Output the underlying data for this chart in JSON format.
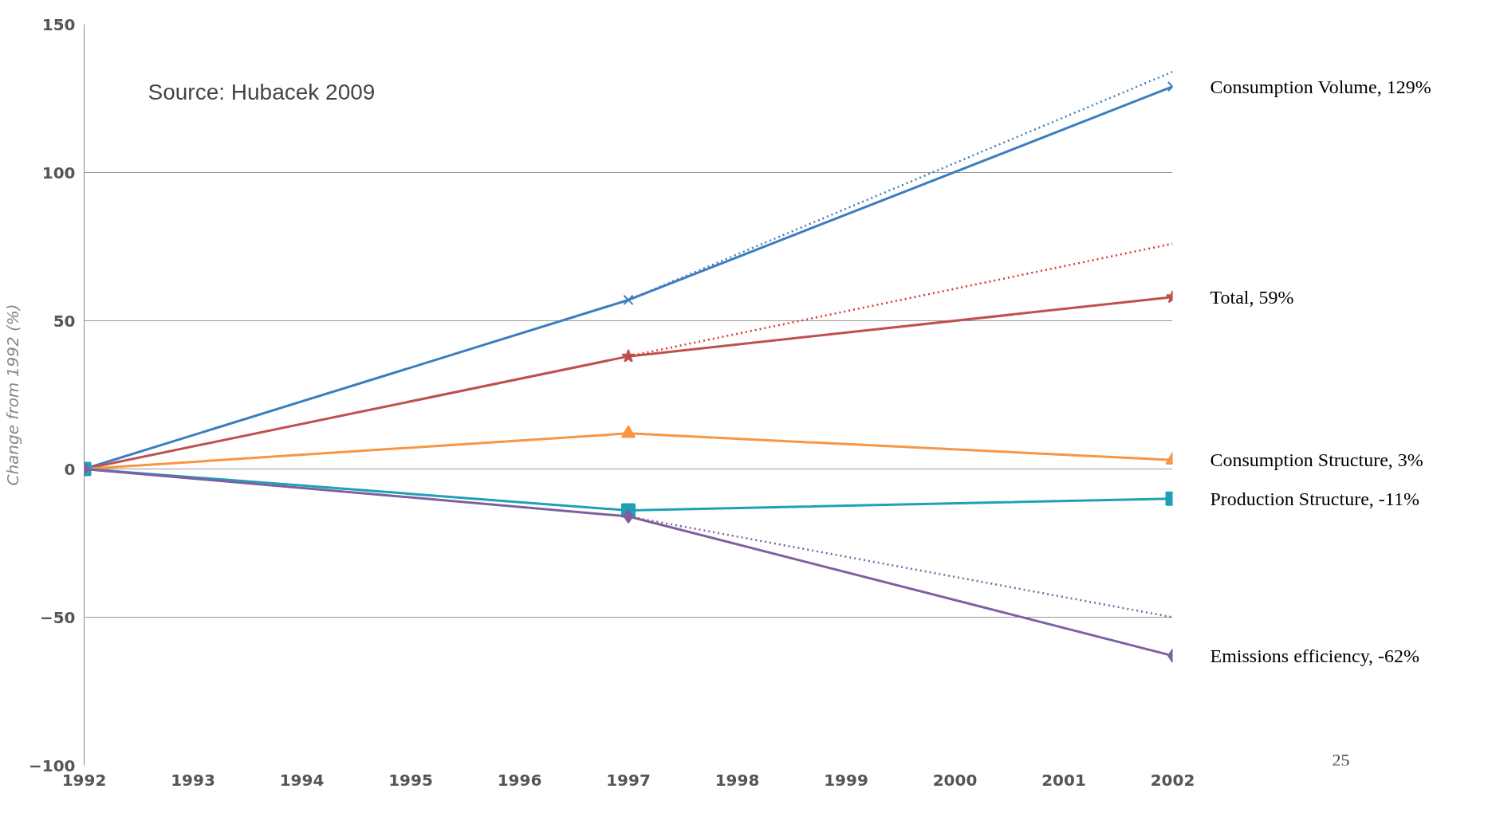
{
  "chart_data": {
    "type": "line",
    "ylabel": "Change from 1992 (%)",
    "x": [
      1992,
      1997,
      2002
    ],
    "xlim": [
      1992,
      2002
    ],
    "xticks": [
      1992,
      1993,
      1994,
      1995,
      1996,
      1997,
      1998,
      1999,
      2000,
      2001,
      2002
    ],
    "ylim": [
      -100,
      150
    ],
    "yticks": [
      -100,
      -50,
      0,
      50,
      100,
      150
    ],
    "grid": "y",
    "annotations": [
      "Source: Hubacek 2009",
      "25"
    ],
    "series": [
      {
        "name": "Consumption Volume, 129%",
        "color": "#3c7dbf",
        "values": [
          0,
          57,
          129
        ],
        "marker": "cross",
        "line_style": "solid"
      },
      {
        "name": "Total, 59%",
        "color": "#c0504d",
        "values": [
          0,
          38,
          58
        ],
        "marker": "star",
        "line_style": "solid"
      },
      {
        "name": "Consumption Structure, 3%",
        "color": "#f79646",
        "values": [
          0,
          12,
          3
        ],
        "marker": "triangle",
        "line_style": "solid"
      },
      {
        "name": "Production Structure, -11%",
        "color": "#1fa0b8",
        "values": [
          0,
          -14,
          -10
        ],
        "marker": "square",
        "line_style": "solid"
      },
      {
        "name": "Emissions efficiency, -62%",
        "color": "#7f5fa0",
        "values": [
          0,
          -16,
          -63
        ],
        "marker": "diamond",
        "line_style": "solid"
      },
      {
        "color": "#3c7dbf",
        "values": [
          null,
          57,
          134
        ],
        "marker": "none",
        "line_style": "dotted"
      },
      {
        "color": "#e03030",
        "values": [
          null,
          38,
          76
        ],
        "marker": "none",
        "line_style": "dotted"
      },
      {
        "color": "#7f5fa0",
        "values": [
          null,
          -16,
          -50
        ],
        "marker": "none",
        "line_style": "dotted"
      }
    ]
  }
}
